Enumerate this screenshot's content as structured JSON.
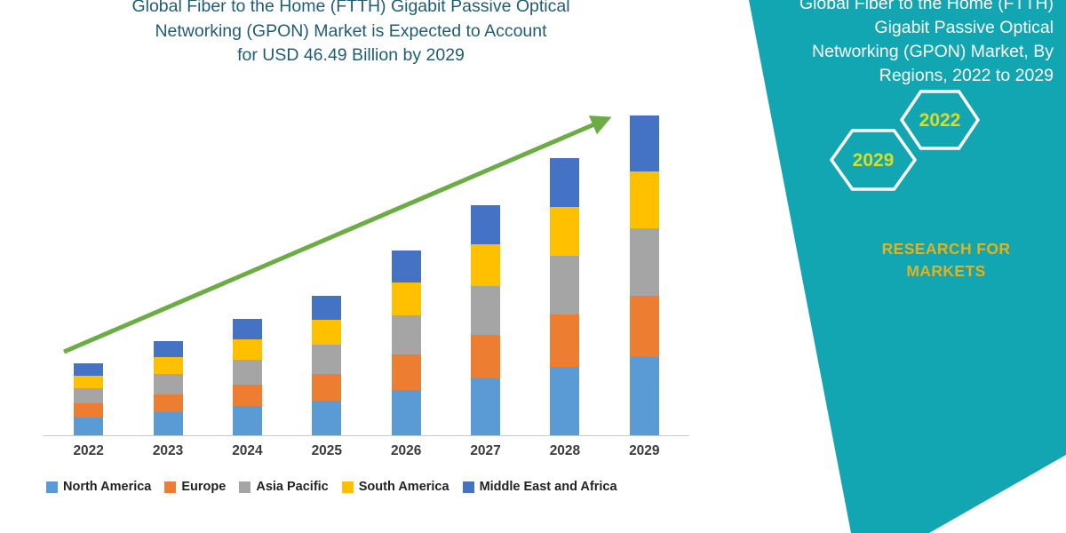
{
  "colors": {
    "left_title": "#1F5D73",
    "teal_background": "#12A5B2",
    "right_title": "#FFFFFF",
    "hexagon_border": "#FFFFFF",
    "hexagon_year": "#D7DF23",
    "brand_text": "#E6B216",
    "trend_arrow": "#6CAC44",
    "axis_line": "#C9C9C9",
    "axis_label": "#3B3B3B"
  },
  "left_panel": {
    "title_lines": [
      "Global Fiber to the Home (FTTH) Gigabit Passive Optical",
      "Networking (GPON) Market is Expected to Account",
      "for USD 46.49 Billion by 2029"
    ]
  },
  "chart_data": {
    "type": "bar",
    "stacked": true,
    "title": "Global Fiber to the Home (FTTH) Gigabit Passive Optical Networking (GPON) Market is Expected to Account for USD 46.49 Billion by 2029",
    "unit": "USD Billion",
    "categories": [
      "2022",
      "2023",
      "2024",
      "2025",
      "2026",
      "2027",
      "2028",
      "2029"
    ],
    "series": [
      {
        "name": "North America",
        "color": "#5B9BD5",
        "values": [
          2.6,
          3.4,
          4.2,
          5.0,
          6.6,
          8.2,
          9.9,
          11.3
        ]
      },
      {
        "name": "Europe",
        "color": "#ED7D31",
        "values": [
          2.0,
          2.6,
          3.2,
          3.9,
          5.1,
          6.4,
          7.7,
          8.9
        ]
      },
      {
        "name": "Asia Pacific",
        "color": "#A5A5A5",
        "values": [
          2.2,
          2.9,
          3.6,
          4.3,
          5.7,
          7.1,
          8.5,
          9.9
        ]
      },
      {
        "name": "South America",
        "color": "#FFC000",
        "values": [
          1.9,
          2.5,
          3.0,
          3.6,
          4.8,
          6.0,
          7.1,
          8.2
        ]
      },
      {
        "name": "Middle East and Africa",
        "color": "#4472C4",
        "values": [
          1.8,
          2.3,
          2.9,
          3.4,
          4.6,
          5.7,
          7.0,
          8.19
        ]
      }
    ],
    "totals": [
      10.5,
      13.7,
      16.9,
      20.2,
      26.8,
      33.4,
      40.2,
      46.49
    ],
    "xlabel": "",
    "ylabel": "",
    "ylim": [
      0,
      48
    ],
    "grid": false,
    "legend_position": "bottom",
    "annotations": [
      "green upward trend arrow rising across the bars from 2022 to 2029"
    ]
  },
  "right_panel": {
    "title_lines": [
      "Global Fiber to the Home (FTTH)",
      "Gigabit Passive Optical",
      "Networking (GPON) Market, By",
      "Regions, 2022 to 2029"
    ],
    "hexagons": [
      {
        "label": "2029"
      },
      {
        "label": "2022"
      }
    ],
    "brand_lines": [
      "RESEARCH FOR",
      "MARKETS"
    ]
  }
}
